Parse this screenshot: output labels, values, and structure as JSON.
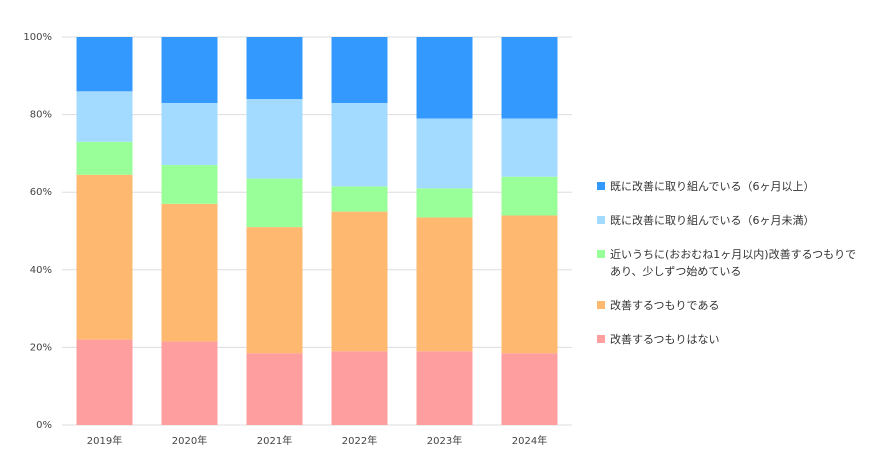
{
  "chart_data": {
    "type": "stacked_bar",
    "categories": [
      "2019年",
      "2020年",
      "2021年",
      "2022年",
      "2023年",
      "2024年"
    ],
    "series": [
      {
        "name": "改善するつもりはない",
        "color": "#ff9e9e",
        "values": [
          22,
          21.5,
          18.5,
          19,
          19,
          18.5
        ]
      },
      {
        "name": "改善するつもりである",
        "color": "#ffb870",
        "values": [
          42.5,
          35.5,
          32.5,
          36,
          34.5,
          35.5
        ]
      },
      {
        "name": "近いうちに(おおむね1ヶ月以内)改善するつもりであり、少しずつ始めている",
        "color": "#99ff99",
        "values": [
          8.5,
          10,
          12.5,
          6.5,
          7.5,
          10
        ]
      },
      {
        "name": "既に改善に取り組んでいる（6ヶ月未満）",
        "color": "#a3daff",
        "values": [
          13,
          16,
          20.5,
          21.5,
          18,
          15
        ]
      },
      {
        "name": "既に改善に取り組んでいる（6ヶ月以上）",
        "color": "#3399ff",
        "values": [
          14,
          17,
          16,
          17,
          21,
          21
        ]
      }
    ],
    "ylim": [
      0,
      100
    ],
    "yticks": [
      {
        "value": 0,
        "label": "0%"
      },
      {
        "value": 20,
        "label": "20%"
      },
      {
        "value": 40,
        "label": "40%"
      },
      {
        "value": 60,
        "label": "60%"
      },
      {
        "value": 80,
        "label": "80%"
      },
      {
        "value": 100,
        "label": "100%"
      }
    ],
    "grid": true,
    "legend": "right"
  }
}
